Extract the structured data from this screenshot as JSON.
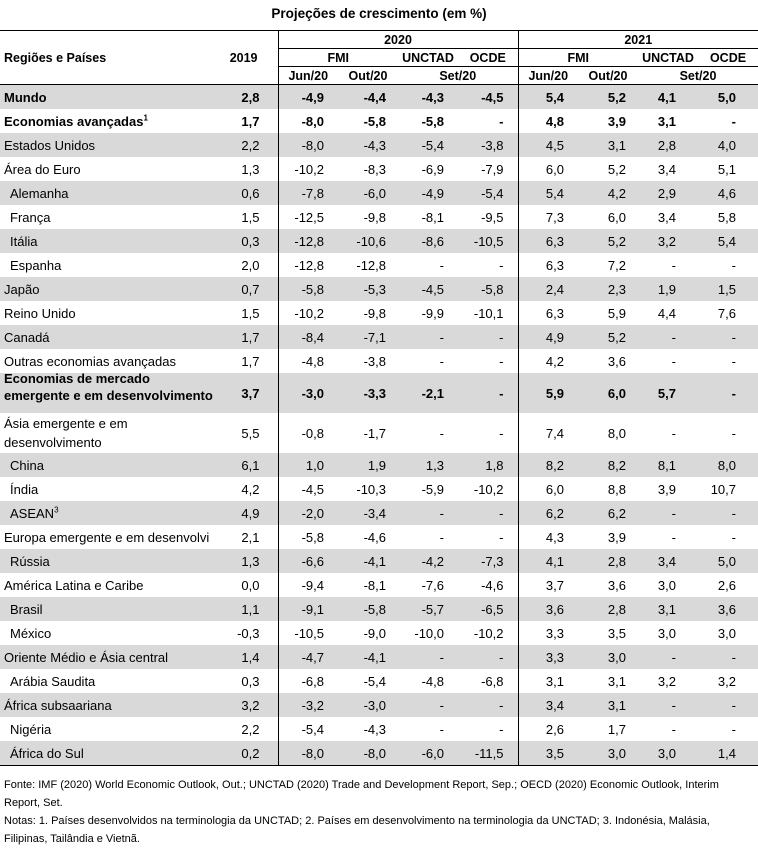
{
  "title": "Projeções de crescimento (em %)",
  "header": {
    "region_label": "Regiões e Países",
    "year_2019": "2019",
    "year_2020": "2020",
    "year_2021": "2021",
    "fmi": "FMI",
    "unctad": "UNCTAD",
    "ocde": "OCDE",
    "jun20": "Jun/20",
    "out20": "Out/20",
    "set20": "Set/20"
  },
  "rows": [
    {
      "name": "Mundo",
      "v": [
        "2,8",
        "-4,9",
        "-4,4",
        "-4,3",
        "-4,5",
        "5,4",
        "5,2",
        "4,1",
        "5,0"
      ]
    },
    {
      "name": "Economias avançadas",
      "sup": "1",
      "v": [
        "1,7",
        "-8,0",
        "-5,8",
        "-5,8",
        "-",
        "4,8",
        "3,9",
        "3,1",
        "-"
      ]
    },
    {
      "name": "Estados Unidos",
      "v": [
        "2,2",
        "-8,0",
        "-4,3",
        "-5,4",
        "-3,8",
        "4,5",
        "3,1",
        "2,8",
        "4,0"
      ]
    },
    {
      "name": "Área do Euro",
      "v": [
        "1,3",
        "-10,2",
        "-8,3",
        "-6,9",
        "-7,9",
        "6,0",
        "5,2",
        "3,4",
        "5,1"
      ]
    },
    {
      "name": "Alemanha",
      "v": [
        "0,6",
        "-7,8",
        "-6,0",
        "-4,9",
        "-5,4",
        "5,4",
        "4,2",
        "2,9",
        "4,6"
      ]
    },
    {
      "name": "França",
      "v": [
        "1,5",
        "-12,5",
        "-9,8",
        "-8,1",
        "-9,5",
        "7,3",
        "6,0",
        "3,4",
        "5,8"
      ]
    },
    {
      "name": "Itália",
      "v": [
        "0,3",
        "-12,8",
        "-10,6",
        "-8,6",
        "-10,5",
        "6,3",
        "5,2",
        "3,2",
        "5,4"
      ]
    },
    {
      "name": "Espanha",
      "v": [
        "2,0",
        "-12,8",
        "-12,8",
        "-",
        "-",
        "6,3",
        "7,2",
        "-",
        "-"
      ]
    },
    {
      "name": "Japão",
      "v": [
        "0,7",
        "-5,8",
        "-5,3",
        "-4,5",
        "-5,8",
        "2,4",
        "2,3",
        "1,9",
        "1,5"
      ]
    },
    {
      "name": "Reino Unido",
      "v": [
        "1,5",
        "-10,2",
        "-9,8",
        "-9,9",
        "-10,1",
        "6,3",
        "5,9",
        "4,4",
        "7,6"
      ]
    },
    {
      "name": "Canadá",
      "v": [
        "1,7",
        "-8,4",
        "-7,1",
        "-",
        "-",
        "4,9",
        "5,2",
        "-",
        "-"
      ]
    },
    {
      "name": "Outras economias avançadas",
      "v": [
        "1,7",
        "-4,8",
        "-3,8",
        "-",
        "-",
        "4,2",
        "3,6",
        "-",
        "-"
      ]
    },
    {
      "name": "Economias de mercado emergente e em desenvolvimento",
      "sup": "2",
      "v": [
        "3,7",
        "-3,0",
        "-3,3",
        "-2,1",
        "-",
        "5,9",
        "6,0",
        "5,7",
        "-"
      ]
    },
    {
      "name": "Ásia emergente e em desenvolvimento",
      "v": [
        "5,5",
        "-0,8",
        "-1,7",
        "-",
        "-",
        "7,4",
        "8,0",
        "-",
        "-"
      ]
    },
    {
      "name": "China",
      "v": [
        "6,1",
        "1,0",
        "1,9",
        "1,3",
        "1,8",
        "8,2",
        "8,2",
        "8,1",
        "8,0"
      ]
    },
    {
      "name": "Índia",
      "v": [
        "4,2",
        "-4,5",
        "-10,3",
        "-5,9",
        "-10,2",
        "6,0",
        "8,8",
        "3,9",
        "10,7"
      ]
    },
    {
      "name": "ASEAN",
      "sup": "3",
      "v": [
        "4,9",
        "-2,0",
        "-3,4",
        "-",
        "-",
        "6,2",
        "6,2",
        "-",
        "-"
      ]
    },
    {
      "name": "Europa emergente e em desenvolvi",
      "v": [
        "2,1",
        "-5,8",
        "-4,6",
        "-",
        "-",
        "4,3",
        "3,9",
        "-",
        "-"
      ]
    },
    {
      "name": "Rússia",
      "v": [
        "1,3",
        "-6,6",
        "-4,1",
        "-4,2",
        "-7,3",
        "4,1",
        "2,8",
        "3,4",
        "5,0"
      ]
    },
    {
      "name": "América Latina e Caribe",
      "v": [
        "0,0",
        "-9,4",
        "-8,1",
        "-7,6",
        "-4,6",
        "3,7",
        "3,6",
        "3,0",
        "2,6"
      ]
    },
    {
      "name": "Brasil",
      "v": [
        "1,1",
        "-9,1",
        "-5,8",
        "-5,7",
        "-6,5",
        "3,6",
        "2,8",
        "3,1",
        "3,6"
      ]
    },
    {
      "name": "México",
      "v": [
        "-0,3",
        "-10,5",
        "-9,0",
        "-10,0",
        "-10,2",
        "3,3",
        "3,5",
        "3,0",
        "3,0"
      ]
    },
    {
      "name": "Oriente Médio e Ásia central",
      "v": [
        "1,4",
        "-4,7",
        "-4,1",
        "-",
        "-",
        "3,3",
        "3,0",
        "-",
        "-"
      ]
    },
    {
      "name": "Arábia Saudita",
      "v": [
        "0,3",
        "-6,8",
        "-5,4",
        "-4,8",
        "-6,8",
        "3,1",
        "3,1",
        "3,2",
        "3,2"
      ]
    },
    {
      "name": "África subsaariana",
      "v": [
        "3,2",
        "-3,2",
        "-3,0",
        "-",
        "-",
        "3,4",
        "3,1",
        "-",
        "-"
      ]
    },
    {
      "name": "Nigéria",
      "v": [
        "2,2",
        "-5,4",
        "-4,3",
        "-",
        "-",
        "2,6",
        "1,7",
        "-",
        "-"
      ]
    },
    {
      "name": "África do Sul",
      "v": [
        "0,2",
        "-8,0",
        "-8,0",
        "-6,0",
        "-11,5",
        "3,5",
        "3,0",
        "3,0",
        "1,4"
      ]
    }
  ],
  "source": "Fonte: IMF (2020) World Economic Outlook, Out.; UNCTAD (2020) Trade and Development Report, Sep.; OECD (2020) Economic Outlook, Interim Report, Set.",
  "notes": "Notas: 1. Países desenvolvidos na terminologia da UNCTAD; 2. Países em desenvolvimento na terminologia da UNCTAD; 3. Indonésia, Malásia, Filipinas, Tailândia e Vietnã."
}
